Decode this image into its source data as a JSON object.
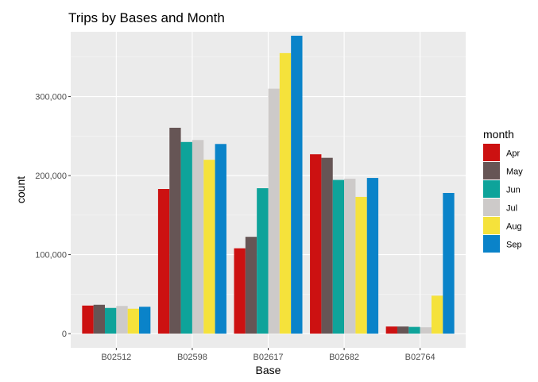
{
  "chart_data": {
    "type": "bar",
    "title": "Trips by Bases and Month",
    "xlabel": "Base",
    "ylabel": "count",
    "categories": [
      "B02512",
      "B02598",
      "B02617",
      "B02682",
      "B02764"
    ],
    "ylim": [
      -18000,
      382000
    ],
    "yticks": [
      0,
      100000,
      200000,
      300000
    ],
    "ytick_labels": [
      "0",
      "100,000",
      "200,000",
      "300,000"
    ],
    "grid": true,
    "legend": {
      "title": "month",
      "placement": "right"
    },
    "series": [
      {
        "name": "Apr",
        "color": "#cc1111",
        "values": [
          35500,
          183000,
          108000,
          227000,
          9000
        ]
      },
      {
        "name": "May",
        "color": "#665555",
        "values": [
          36500,
          260500,
          122500,
          222500,
          9000
        ]
      },
      {
        "name": "Jun",
        "color": "#0ea39a",
        "values": [
          32500,
          242500,
          184000,
          194500,
          8500
        ]
      },
      {
        "name": "Jul",
        "color": "#cdcac9",
        "values": [
          35000,
          245000,
          310000,
          196000,
          8000
        ]
      },
      {
        "name": "Aug",
        "color": "#f5e23b",
        "values": [
          31500,
          220000,
          355000,
          173000,
          48000
        ]
      },
      {
        "name": "Sep",
        "color": "#0a83c9",
        "values": [
          34000,
          240000,
          377000,
          197000,
          178000
        ]
      }
    ]
  }
}
